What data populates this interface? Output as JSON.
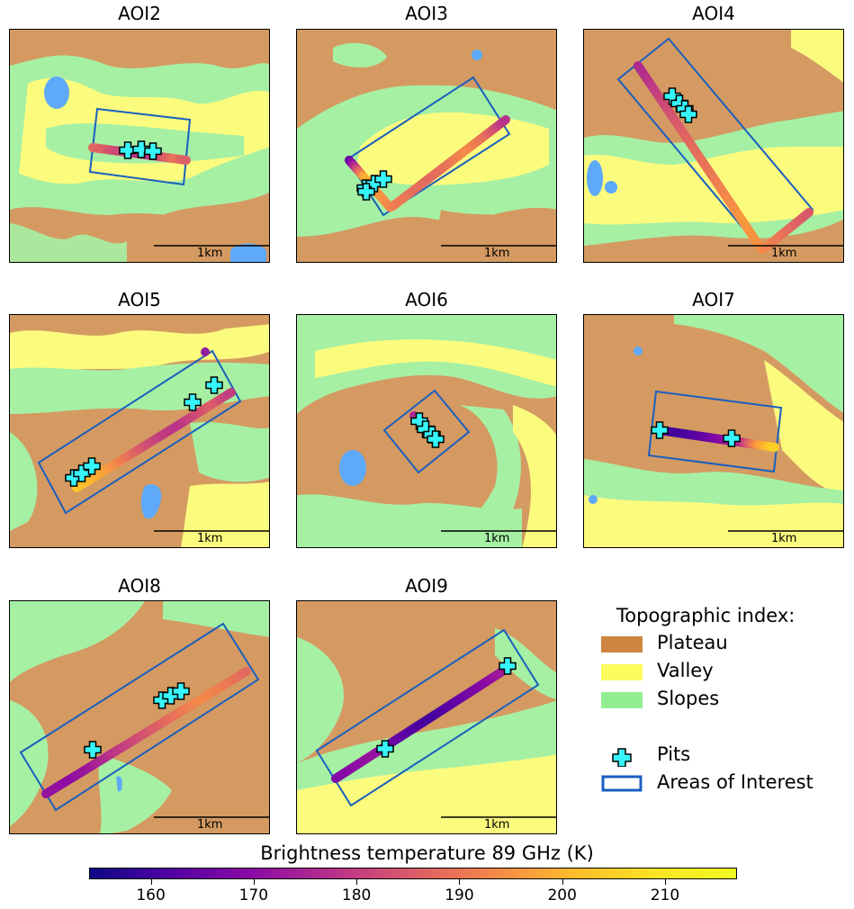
{
  "colors": {
    "plateau": "#d49a62",
    "valley": "#fbfb7e",
    "slopes": "#a6f0a4",
    "water": "#5ea9f8",
    "aoi_box": "#1a5fbf",
    "pit_fill": "#36f6fb"
  },
  "scale_label": "1km",
  "panels": [
    {
      "title": "AOI2",
      "pits": 3,
      "tb": [
        188,
        186,
        183,
        181,
        179,
        178,
        180,
        185,
        190,
        186
      ]
    },
    {
      "title": "AOI3",
      "pits": 4,
      "tb": [
        165,
        200,
        196,
        192,
        189,
        188,
        190,
        194,
        189,
        178
      ]
    },
    {
      "title": "AOI4",
      "pits": 4,
      "tb": [
        176,
        180,
        184,
        188,
        190,
        193,
        196,
        195,
        190,
        185
      ]
    },
    {
      "title": "AOI5",
      "pits": 6,
      "tb": [
        203,
        200,
        196,
        190,
        184,
        180,
        178,
        182,
        186,
        180
      ]
    },
    {
      "title": "AOI6",
      "pits": 4,
      "tb": [
        175,
        180,
        186,
        181
      ]
    },
    {
      "title": "AOI7",
      "pits": 2,
      "tb": [
        162,
        160,
        162,
        165,
        170,
        176,
        195,
        205
      ]
    },
    {
      "title": "AOI8",
      "pits": 5,
      "tb": [
        172,
        170,
        173,
        178,
        182,
        186,
        190,
        194,
        192,
        188
      ]
    },
    {
      "title": "AOI9",
      "pits": 3,
      "tb": [
        168,
        170,
        172,
        166,
        162,
        160,
        163,
        167,
        170,
        174
      ]
    }
  ],
  "legend": {
    "title": "Topographic index:",
    "items": [
      {
        "label": "Plateau",
        "color": "#cd853f"
      },
      {
        "label": "Valley",
        "color": "#fbfb5e"
      },
      {
        "label": "Slopes",
        "color": "#90ee90"
      }
    ],
    "pits_label": "Pits",
    "aoi_label": "Areas of Interest"
  },
  "colorbar": {
    "title": "Brightness temperature 89 GHz (K)",
    "min": 154,
    "max": 217,
    "ticks": [
      "160",
      "170",
      "180",
      "190",
      "200",
      "210"
    ],
    "tick_values": [
      160,
      170,
      180,
      190,
      200,
      210
    ],
    "colormap": "plasma"
  }
}
